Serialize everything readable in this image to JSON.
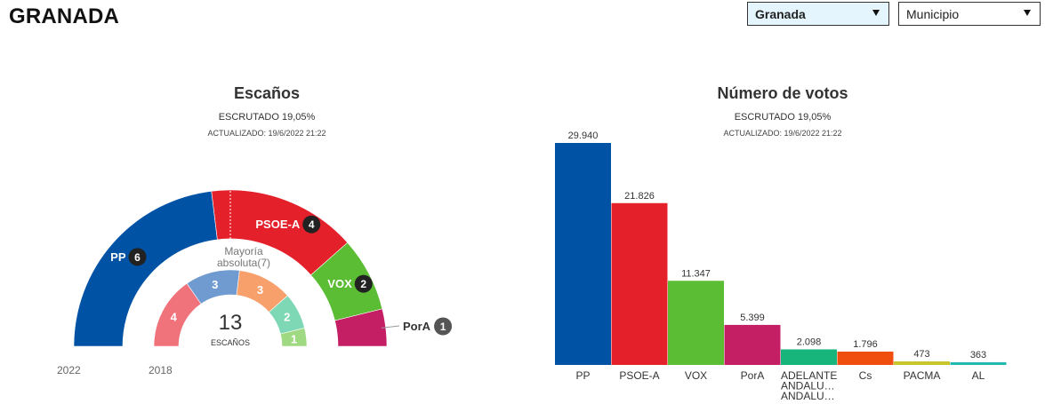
{
  "header": {
    "title": "GRANADA"
  },
  "filters": {
    "location": {
      "value": "Granada",
      "bg": "#e5f5fd"
    },
    "level": {
      "value": "Municipio",
      "bg": "#ffffff"
    }
  },
  "seats_panel": {
    "title": "Escaños",
    "status": "ESCRUTADO 19,05%",
    "updated": "ACTUALIZADO: 19/6/2022 21:22",
    "majority_label_1": "Mayoría",
    "majority_label_2": "absoluta(7)",
    "total_seats": "13",
    "seats_label": "ESCAÑOS",
    "year_outer": "2022",
    "year_inner": "2018"
  },
  "votes_panel": {
    "title": "Número de votos",
    "status": "ESCRUTADO 19,05%",
    "updated": "ACTUALIZADO: 19/6/2022 21:22"
  },
  "chart_data": [
    {
      "type": "pie",
      "title": "Escaños",
      "subtitle": "2022",
      "total": 13,
      "majority": 7,
      "series": [
        {
          "name": "PP",
          "value": 6,
          "color": "#0052a5"
        },
        {
          "name": "PSOE-A",
          "value": 4,
          "color": "#e4202a"
        },
        {
          "name": "VOX",
          "value": 2,
          "color": "#5abd33"
        },
        {
          "name": "PorA",
          "value": 1,
          "color": "#c41e64"
        }
      ]
    },
    {
      "type": "pie",
      "title": "Escaños",
      "subtitle": "2018",
      "total": 13,
      "series": [
        {
          "value": 4,
          "color": "#f0727a"
        },
        {
          "value": 3,
          "color": "#6f9bd0"
        },
        {
          "value": 3,
          "color": "#f7a06c"
        },
        {
          "value": 2,
          "color": "#7fd8b5"
        },
        {
          "value": 1,
          "color": "#9fd981"
        }
      ]
    },
    {
      "type": "bar",
      "title": "Número de votos",
      "categories": [
        "PP",
        "PSOE-A",
        "VOX",
        "PorA",
        "ADELANTE ANDALU… ANDALU…",
        "Cs",
        "PACMA",
        "AL"
      ],
      "category_lines": [
        [
          "PP"
        ],
        [
          "PSOE-A"
        ],
        [
          "VOX"
        ],
        [
          "PorA"
        ],
        [
          "ADELANTE",
          "ANDALU…",
          "ANDALU…"
        ],
        [
          "Cs"
        ],
        [
          "PACMA"
        ],
        [
          "AL"
        ]
      ],
      "values": [
        29940,
        21826,
        11347,
        5399,
        2098,
        1796,
        473,
        363
      ],
      "value_labels": [
        "29.940",
        "21.826",
        "11.347",
        "5.399",
        "2.098",
        "1.796",
        "473",
        "363"
      ],
      "colors": [
        "#0052a5",
        "#e4202a",
        "#5abd33",
        "#c41e64",
        "#17b47c",
        "#f04e0f",
        "#c8c42a",
        "#23b9b0"
      ],
      "ylim": [
        0,
        29940
      ]
    }
  ]
}
